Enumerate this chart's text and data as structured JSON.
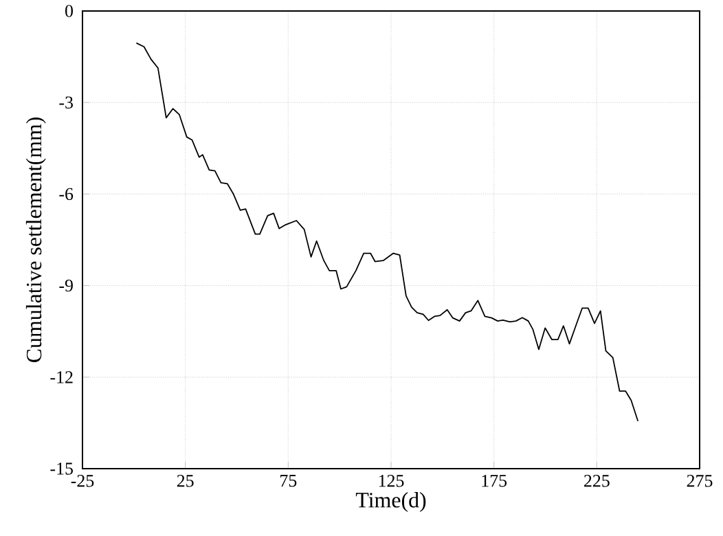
{
  "chart_data": {
    "type": "line",
    "xlabel": "Time(d)",
    "ylabel": "Cumulative settlement(mm)",
    "color": "#000000",
    "grid": true,
    "marker": "none",
    "line_style": "solid",
    "xlim": [
      -25,
      275
    ],
    "ylim": [
      -15,
      0
    ],
    "xticks": [
      -25,
      25,
      75,
      125,
      175,
      225,
      275
    ],
    "yticks": [
      -15,
      -12,
      -9,
      -6,
      -3,
      0
    ],
    "x": [
      1.2,
      4.9,
      8.3,
      11.7,
      15.7,
      19,
      22.1,
      25.7,
      28.3,
      31.7,
      33.4,
      36.6,
      39.4,
      42.3,
      45.4,
      48.3,
      51.7,
      54.3,
      59,
      61.2,
      65,
      67.9,
      70.6,
      73.9,
      79,
      82.8,
      86.1,
      88.8,
      92.3,
      95,
      98.3,
      100.6,
      103.4,
      107.9,
      111.7,
      115,
      117.2,
      121.2,
      126.1,
      129.2,
      132.3,
      135,
      137.7,
      140.6,
      143.2,
      146.1,
      148.8,
      152.3,
      155,
      158.3,
      161.2,
      163.9,
      167.2,
      170.6,
      173.9,
      176.8,
      179.4,
      182.8,
      185.7,
      188.8,
      191.7,
      193.9,
      196.8,
      199.9,
      203.2,
      206.1,
      208.8,
      211.7,
      215,
      217.9,
      220.8,
      223.9,
      226.8,
      229.4,
      232.8,
      236.1,
      239,
      241.7,
      245
    ],
    "values": [
      -1.05,
      -1.17,
      -1.58,
      -1.87,
      -3.5,
      -3.2,
      -3.4,
      -4.13,
      -4.23,
      -4.79,
      -4.71,
      -5.21,
      -5.24,
      -5.63,
      -5.66,
      -5.99,
      -6.53,
      -6.49,
      -7.31,
      -7.31,
      -6.71,
      -6.63,
      -7.13,
      -7.0,
      -6.87,
      -7.16,
      -8.06,
      -7.54,
      -8.18,
      -8.51,
      -8.51,
      -9.11,
      -9.04,
      -8.51,
      -7.94,
      -7.94,
      -8.21,
      -8.18,
      -7.94,
      -8.0,
      -9.34,
      -9.71,
      -9.89,
      -9.94,
      -10.14,
      -10.01,
      -9.98,
      -9.79,
      -10.06,
      -10.16,
      -9.89,
      -9.83,
      -9.49,
      -10.01,
      -10.06,
      -10.16,
      -10.13,
      -10.19,
      -10.16,
      -10.05,
      -10.16,
      -10.43,
      -11.09,
      -10.39,
      -10.77,
      -10.77,
      -10.32,
      -10.91,
      -10.28,
      -9.74,
      -9.74,
      -10.24,
      -9.83,
      -11.14,
      -11.36,
      -12.46,
      -12.46,
      -12.76,
      -13.44
    ]
  }
}
